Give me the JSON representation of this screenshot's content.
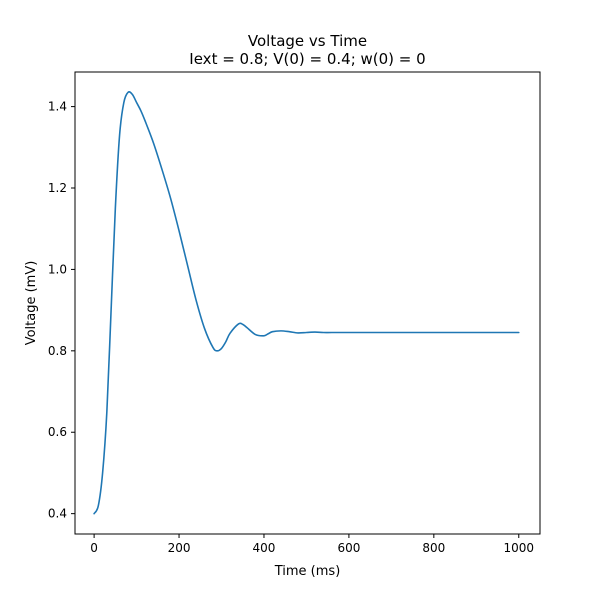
{
  "chart_data": {
    "type": "line",
    "title": "Voltage vs Time",
    "subtitle": "Iext = 0.8; V(0) = 0.4; w(0) = 0",
    "xlabel": "Time (ms)",
    "ylabel": "Voltage (mV)",
    "xlim": [
      -45,
      1050
    ],
    "ylim": [
      0.35,
      1.485
    ],
    "xticks": [
      0,
      200,
      400,
      600,
      800,
      1000
    ],
    "xtick_labels": [
      "0",
      "200",
      "400",
      "600",
      "800",
      "1000"
    ],
    "yticks": [
      0.4,
      0.6,
      0.8,
      1.0,
      1.2,
      1.4
    ],
    "ytick_labels": [
      "0.4",
      "0.6",
      "0.8",
      "1.0",
      "1.2",
      "1.4"
    ],
    "grid": false,
    "line_color": "#1f77b4",
    "series": [
      {
        "x": [
          0,
          10,
          20,
          30,
          40,
          50,
          60,
          70,
          80,
          90,
          100,
          110,
          120,
          140,
          160,
          180,
          200,
          220,
          240,
          260,
          280,
          290,
          300,
          310,
          320,
          340,
          350,
          360,
          380,
          400,
          410,
          420,
          440,
          460,
          480,
          500,
          520,
          540,
          560,
          600,
          700,
          800,
          900,
          1000
        ],
        "y": [
          0.4,
          0.42,
          0.5,
          0.65,
          0.9,
          1.15,
          1.33,
          1.41,
          1.435,
          1.43,
          1.41,
          1.39,
          1.365,
          1.31,
          1.245,
          1.175,
          1.095,
          1.01,
          0.925,
          0.855,
          0.808,
          0.8,
          0.806,
          0.822,
          0.843,
          0.866,
          0.865,
          0.857,
          0.84,
          0.837,
          0.842,
          0.847,
          0.849,
          0.847,
          0.844,
          0.845,
          0.846,
          0.845,
          0.845,
          0.845,
          0.845,
          0.845,
          0.845,
          0.845
        ]
      }
    ]
  }
}
